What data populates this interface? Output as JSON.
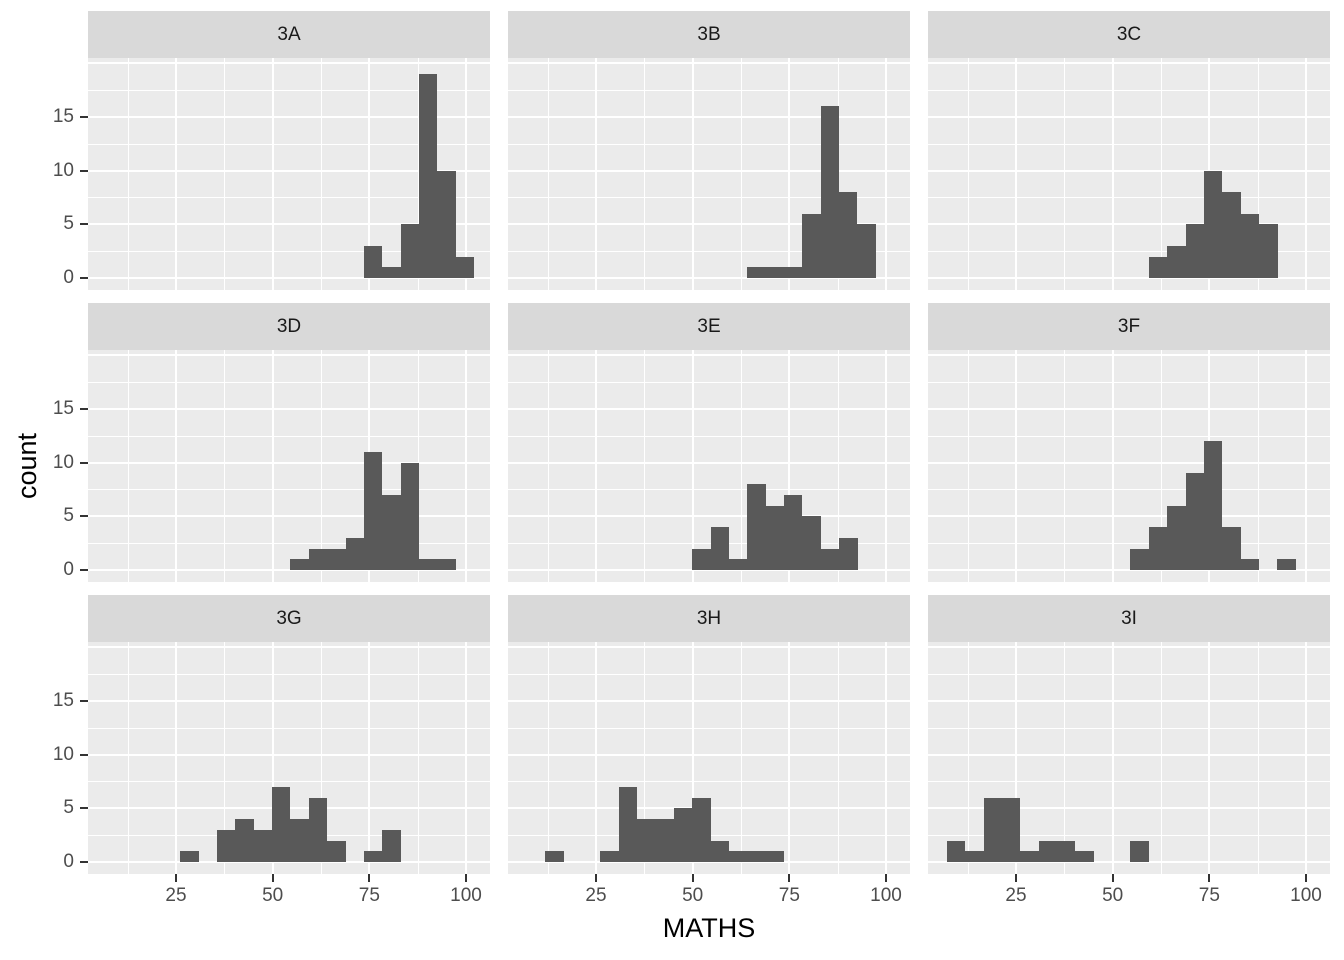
{
  "chart_data": {
    "type": "bar",
    "subtype": "histogram",
    "title": "",
    "xlabel": "MATHS",
    "ylabel": "count",
    "facet_variable_values": [
      "3A",
      "3B",
      "3C",
      "3D",
      "3E",
      "3F",
      "3G",
      "3H",
      "3I"
    ],
    "binwidth": 4.75,
    "x_ticks": [
      25,
      50,
      75,
      100
    ],
    "x_minor_gridlines": [
      12.5,
      37.5,
      62.5,
      87.5
    ],
    "x_range": [
      2.2,
      106.2
    ],
    "y_ticks": [
      0,
      5,
      10,
      15
    ],
    "y_major_gridlines": [
      0,
      5,
      10,
      15,
      20
    ],
    "y_minor_gridlines": [
      2.5,
      7.5,
      12.5,
      17.5
    ],
    "y_range": [
      -1.1,
      20.5
    ],
    "grid": true,
    "legend": "none",
    "facets": [
      {
        "label": "3A",
        "bin_start": 73.6,
        "counts": [
          3,
          1,
          5,
          19,
          10,
          2
        ]
      },
      {
        "label": "3B",
        "bin_start": 64.1,
        "counts": [
          1,
          1,
          1,
          6,
          16,
          8,
          5
        ]
      },
      {
        "label": "3C",
        "bin_start": 59.4,
        "counts": [
          2,
          3,
          5,
          10,
          8,
          6,
          5
        ]
      },
      {
        "label": "3D",
        "bin_start": 54.6,
        "counts": [
          1,
          2,
          2,
          3,
          11,
          7,
          10,
          1,
          1
        ]
      },
      {
        "label": "3E",
        "bin_start": 49.9,
        "counts": [
          2,
          4,
          1,
          8,
          6,
          7,
          5,
          2,
          3
        ]
      },
      {
        "label": "3F",
        "bin_start": 54.6,
        "counts": [
          2,
          4,
          6,
          9,
          12,
          4,
          1,
          0,
          1
        ]
      },
      {
        "label": "3G",
        "bin_start": 26.1,
        "counts": [
          1,
          0,
          3,
          4,
          3,
          7,
          4,
          6,
          2,
          0,
          1,
          3
        ]
      },
      {
        "label": "3H",
        "bin_start": 11.9,
        "counts": [
          1,
          0,
          0,
          1,
          7,
          4,
          4,
          5,
          6,
          2,
          1,
          1,
          1
        ]
      },
      {
        "label": "3I",
        "bin_start": 7.1,
        "counts": [
          2,
          1,
          6,
          6,
          1,
          2,
          2,
          1,
          0,
          0,
          2
        ]
      }
    ],
    "colors": {
      "bar": "#595959",
      "panel_bg": "#EBEBEB",
      "strip_bg": "#D9D9D9",
      "gridline": "#FFFFFF",
      "tick_label": "#4D4D4D",
      "strip_text": "#1A1A1A",
      "axis_title": "#000000",
      "tick_mark": "#333333",
      "figure_bg": "#FFFFFF"
    }
  }
}
